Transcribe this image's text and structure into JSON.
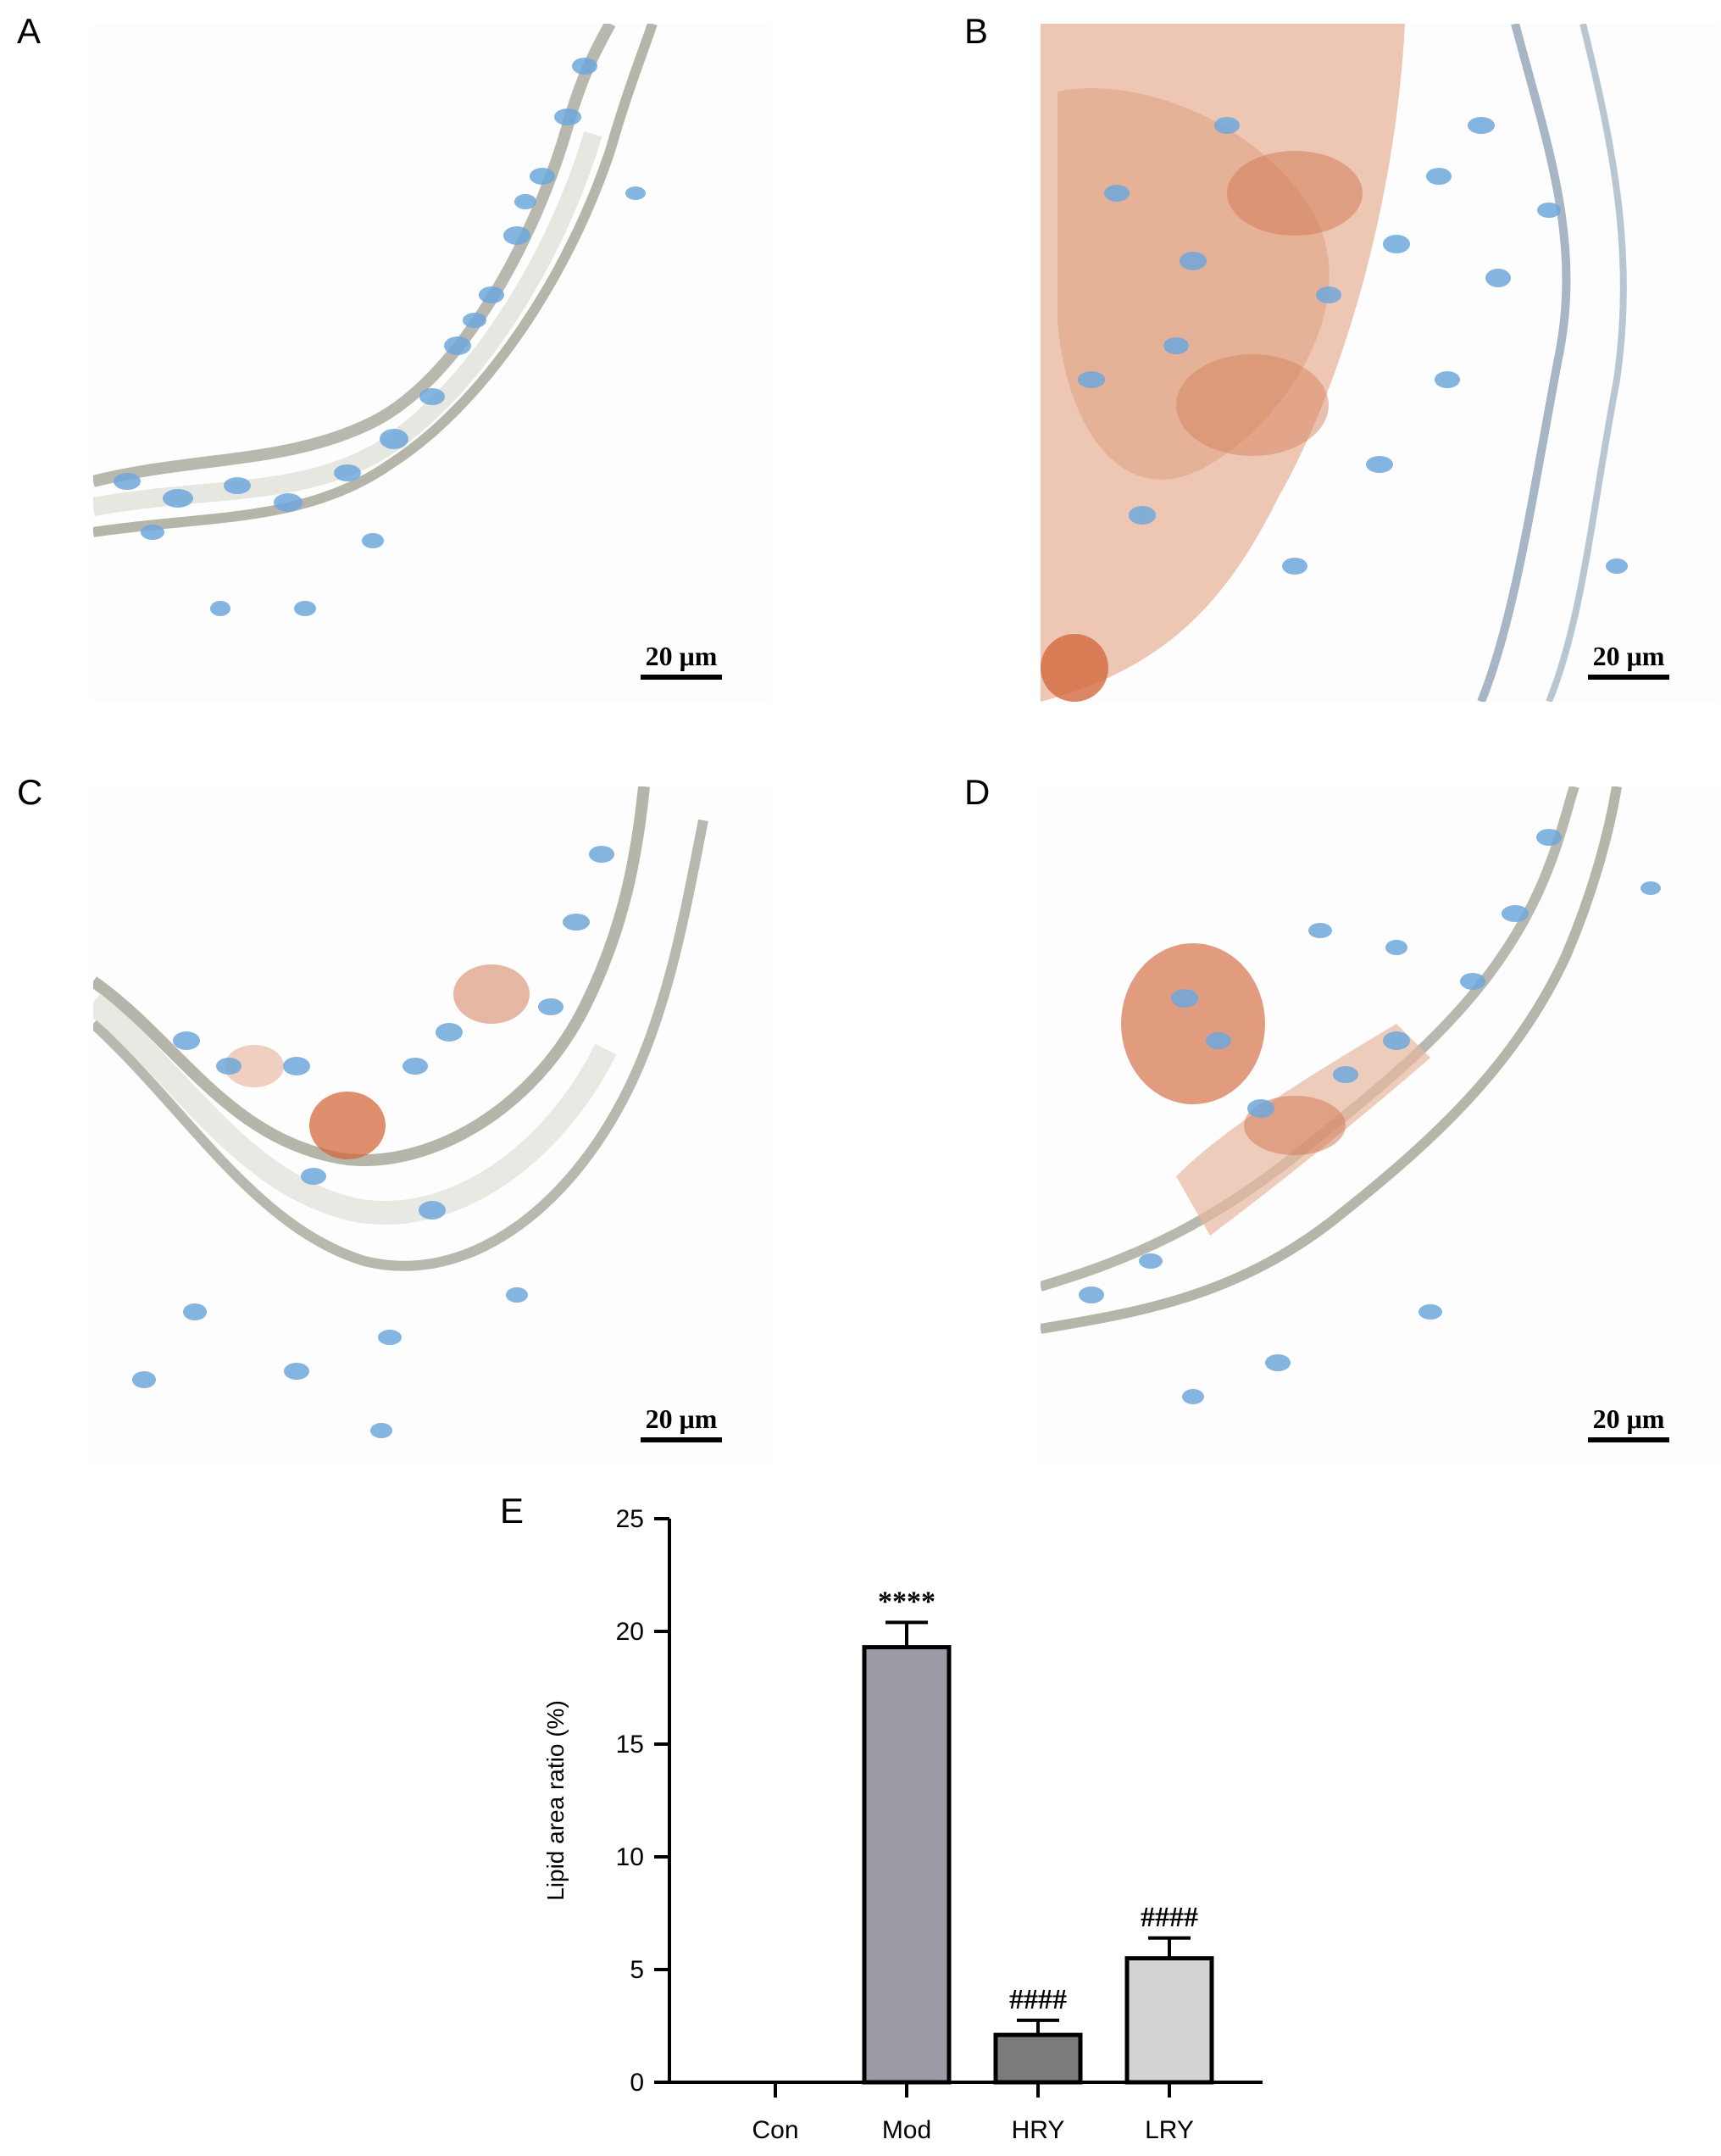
{
  "panels": [
    {
      "letter": "A",
      "scale_label": "20 μm",
      "stain": "control - no lipid"
    },
    {
      "letter": "B",
      "scale_label": "20 μm",
      "stain": "model - heavy lipid"
    },
    {
      "letter": "C",
      "scale_label": "20 μm",
      "stain": "HRY - light lipid"
    },
    {
      "letter": "D",
      "scale_label": "20 μm",
      "stain": "LRY - moderate lipid"
    }
  ],
  "chart_letter": "E",
  "colors": {
    "nucleus": "#6fa8dc",
    "lipid": "#d2693e",
    "fiber": "#9a9a8e"
  },
  "chart_data": {
    "type": "bar",
    "categories": [
      "Con",
      "Mod",
      "HRY",
      "LRY"
    ],
    "values": [
      0,
      19.3,
      2.1,
      5.5
    ],
    "errors": [
      0,
      1.1,
      0.65,
      0.9
    ],
    "annotations": [
      "",
      "****",
      "####",
      "####"
    ],
    "bar_colors": [
      "#ffffff",
      "#9b9ba5",
      "#7b7b7b",
      "#d3d3d3"
    ],
    "xlabel": "",
    "ylabel": "Lipid area ratio (%)",
    "ylim": [
      0,
      25
    ],
    "yticks": [
      0,
      5,
      10,
      15,
      20,
      25
    ],
    "grid": false
  }
}
